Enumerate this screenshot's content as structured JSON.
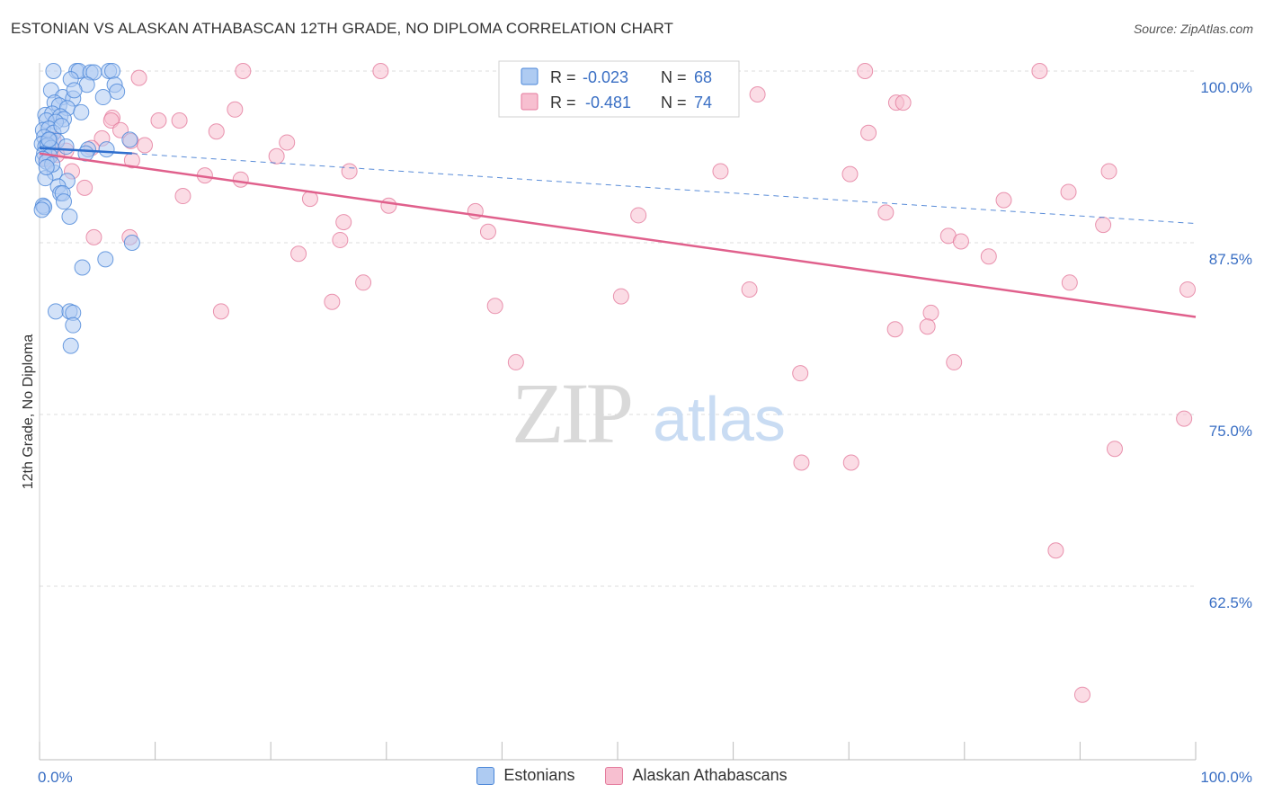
{
  "title": "ESTONIAN VS ALASKAN ATHABASCAN 12TH GRADE, NO DIPLOMA CORRELATION CHART",
  "source": "Source: ZipAtlas.com",
  "watermark": {
    "zip": "ZIP",
    "atlas": "atlas"
  },
  "colors": {
    "blue_fill": "#aecbf2",
    "blue_stroke": "#4a86d8",
    "blue_line": "#2f6fce",
    "pink_fill": "#f7bfd0",
    "pink_stroke": "#e47a9c",
    "pink_line": "#e0608c",
    "tick_label": "#3a6fc4",
    "grid": "#dddddd"
  },
  "legend_top": {
    "rows": [
      {
        "r_label": "R = ",
        "r_value": "-0.023",
        "n_label": "N = ",
        "n_value": "68",
        "series": "Estonians"
      },
      {
        "r_label": "R = ",
        "r_value": "-0.481",
        "n_label": "N = ",
        "n_value": "74",
        "series": "Alaskan Athabascans"
      }
    ]
  },
  "chart_data": {
    "type": "scatter",
    "title": "ESTONIAN VS ALASKAN ATHABASCAN 12TH GRADE, NO DIPLOMA CORRELATION CHART",
    "xlabel": "",
    "ylabel": "12th Grade, No Diploma",
    "xlim": [
      0,
      100
    ],
    "ylim": [
      50,
      100
    ],
    "x_tick_labels": [
      {
        "value": 0,
        "label": "0.0%"
      },
      {
        "value": 100,
        "label": "100.0%"
      }
    ],
    "y_ticks": [
      {
        "value": 100,
        "label": "100.0%"
      },
      {
        "value": 87.5,
        "label": "87.5%"
      },
      {
        "value": 75,
        "label": "75.0%"
      },
      {
        "value": 62.5,
        "label": "62.5%"
      }
    ],
    "grid": true,
    "legend_position": "bottom-center",
    "series": [
      {
        "name": "Estonians",
        "color": "#aecbf2",
        "trend": {
          "x": [
            0,
            8
          ],
          "y": [
            94.4,
            94.0
          ],
          "extended": {
            "x": [
              8,
              100
            ],
            "y": [
              94.0,
              88.9
            ]
          }
        },
        "points": [
          [
            1.2,
            100
          ],
          [
            3.2,
            100
          ],
          [
            3.4,
            100
          ],
          [
            6.0,
            100
          ],
          [
            6.3,
            100
          ],
          [
            4.4,
            99.9
          ],
          [
            4.7,
            99.9
          ],
          [
            2.7,
            99.4
          ],
          [
            4.1,
            99.0
          ],
          [
            6.5,
            99.0
          ],
          [
            6.7,
            98.5
          ],
          [
            1.0,
            98.6
          ],
          [
            2.0,
            98.1
          ],
          [
            2.9,
            98.0
          ],
          [
            3.0,
            98.6
          ],
          [
            5.5,
            98.1
          ],
          [
            1.3,
            97.7
          ],
          [
            1.7,
            97.5
          ],
          [
            2.4,
            97.3
          ],
          [
            0.5,
            96.8
          ],
          [
            1.1,
            96.9
          ],
          [
            1.8,
            96.7
          ],
          [
            2.1,
            96.5
          ],
          [
            0.6,
            96.4
          ],
          [
            1.4,
            96.3
          ],
          [
            0.3,
            95.7
          ],
          [
            0.8,
            95.8
          ],
          [
            1.2,
            95.5
          ],
          [
            0.4,
            95.2
          ],
          [
            0.9,
            95.0
          ],
          [
            1.5,
            94.9
          ],
          [
            7.8,
            95.0
          ],
          [
            0.2,
            94.7
          ],
          [
            0.5,
            94.5
          ],
          [
            0.7,
            94.6
          ],
          [
            1.0,
            94.4
          ],
          [
            4.2,
            94.3
          ],
          [
            5.8,
            94.3
          ],
          [
            0.4,
            94.0
          ],
          [
            0.9,
            93.8
          ],
          [
            4.0,
            94.0
          ],
          [
            0.3,
            93.6
          ],
          [
            0.6,
            93.4
          ],
          [
            1.3,
            92.6
          ],
          [
            0.5,
            92.2
          ],
          [
            2.4,
            92.0
          ],
          [
            1.6,
            91.6
          ],
          [
            1.8,
            91.1
          ],
          [
            2.0,
            91.1
          ],
          [
            2.1,
            90.5
          ],
          [
            0.3,
            90.2
          ],
          [
            0.4,
            90.1
          ],
          [
            0.2,
            89.9
          ],
          [
            2.6,
            89.4
          ],
          [
            8.0,
            87.5
          ],
          [
            5.7,
            86.3
          ],
          [
            3.7,
            85.7
          ],
          [
            1.4,
            82.5
          ],
          [
            2.6,
            82.5
          ],
          [
            2.9,
            82.4
          ],
          [
            2.9,
            81.5
          ],
          [
            2.7,
            80.0
          ],
          [
            1.1,
            93.2
          ],
          [
            2.3,
            94.5
          ],
          [
            0.8,
            95.0
          ],
          [
            1.9,
            96.0
          ],
          [
            3.6,
            97.0
          ],
          [
            0.6,
            93.0
          ]
        ]
      },
      {
        "name": "Alaskan Athabascans",
        "color": "#f7bfd0",
        "trend": {
          "x": [
            0,
            100
          ],
          "y": [
            94.0,
            82.1
          ]
        },
        "points": [
          [
            8.6,
            99.5
          ],
          [
            17.6,
            100
          ],
          [
            29.5,
            100
          ],
          [
            71.4,
            100
          ],
          [
            86.5,
            100
          ],
          [
            62.1,
            98.3
          ],
          [
            74.1,
            97.7
          ],
          [
            74.7,
            97.7
          ],
          [
            16.9,
            97.2
          ],
          [
            6.3,
            96.6
          ],
          [
            6.2,
            96.4
          ],
          [
            10.3,
            96.4
          ],
          [
            12.1,
            96.4
          ],
          [
            7.0,
            95.7
          ],
          [
            15.3,
            95.6
          ],
          [
            71.7,
            95.5
          ],
          [
            5.4,
            95.1
          ],
          [
            7.9,
            94.9
          ],
          [
            21.4,
            94.8
          ],
          [
            1.2,
            95.0
          ],
          [
            9.1,
            94.6
          ],
          [
            4.5,
            94.4
          ],
          [
            2.3,
            94.2
          ],
          [
            0.9,
            94.0
          ],
          [
            1.5,
            93.9
          ],
          [
            20.5,
            93.8
          ],
          [
            0.6,
            93.6
          ],
          [
            2.8,
            92.7
          ],
          [
            26.8,
            92.7
          ],
          [
            58.9,
            92.7
          ],
          [
            70.1,
            92.5
          ],
          [
            92.5,
            92.7
          ],
          [
            14.3,
            92.4
          ],
          [
            17.4,
            92.1
          ],
          [
            3.9,
            91.5
          ],
          [
            89.0,
            91.2
          ],
          [
            12.4,
            90.9
          ],
          [
            23.4,
            90.7
          ],
          [
            83.4,
            90.6
          ],
          [
            30.2,
            90.2
          ],
          [
            37.7,
            89.8
          ],
          [
            51.8,
            89.5
          ],
          [
            73.2,
            89.7
          ],
          [
            26.3,
            89.0
          ],
          [
            92.0,
            88.8
          ],
          [
            38.8,
            88.3
          ],
          [
            78.6,
            88.0
          ],
          [
            79.7,
            87.6
          ],
          [
            4.7,
            87.9
          ],
          [
            7.8,
            87.9
          ],
          [
            26.0,
            87.7
          ],
          [
            22.4,
            86.7
          ],
          [
            82.1,
            86.5
          ],
          [
            28.0,
            84.6
          ],
          [
            89.1,
            84.6
          ],
          [
            99.3,
            84.1
          ],
          [
            61.4,
            84.1
          ],
          [
            50.3,
            83.6
          ],
          [
            25.3,
            83.2
          ],
          [
            39.4,
            82.9
          ],
          [
            15.7,
            82.5
          ],
          [
            77.1,
            82.4
          ],
          [
            76.8,
            81.4
          ],
          [
            74.0,
            81.2
          ],
          [
            41.2,
            78.8
          ],
          [
            79.1,
            78.8
          ],
          [
            65.8,
            78.0
          ],
          [
            99.0,
            74.7
          ],
          [
            93.0,
            72.5
          ],
          [
            65.9,
            71.5
          ],
          [
            70.2,
            71.5
          ],
          [
            87.9,
            65.1
          ],
          [
            90.2,
            54.6
          ],
          [
            8.0,
            93.5
          ]
        ]
      }
    ]
  }
}
